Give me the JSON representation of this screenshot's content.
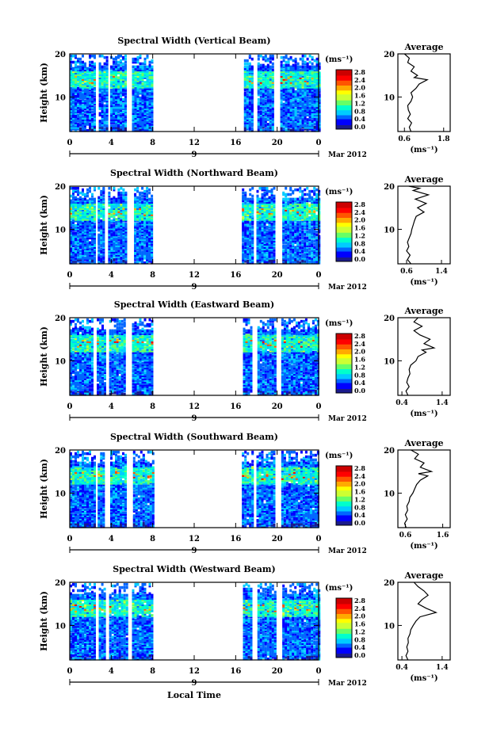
{
  "chart_data": [
    {
      "type": "heatmap",
      "title": "Spectral Width (Vertical Beam)",
      "ylabel": "Height (km)",
      "xlabel_date": "Mar 2012",
      "x_ticks": [
        "0",
        "4",
        "8",
        "12",
        "16",
        "20",
        "0"
      ],
      "day_label": "9",
      "y_ticks": [
        "20",
        "10"
      ],
      "ylim": [
        2,
        20
      ],
      "xlim": [
        0,
        24
      ],
      "data_segments_hours": [
        [
          0,
          2.4
        ],
        [
          2.8,
          3.5
        ],
        [
          3.9,
          5.4
        ],
        [
          6,
          8
        ],
        [
          16.8,
          17.7
        ],
        [
          18.1,
          19.7
        ],
        [
          20.3,
          24
        ]
      ],
      "colorbar": {
        "unit_label": "(ms⁻¹)",
        "ticks": [
          "2.8",
          "2.4",
          "2.0",
          "1.6",
          "1.2",
          "0.8",
          "0.4",
          "0.0"
        ],
        "range": [
          0,
          2.8
        ],
        "colors": [
          "#1a1a8c",
          "#0000ff",
          "#0066ff",
          "#00ccff",
          "#00ffcc",
          "#66ff66",
          "#ccff33",
          "#ffff00",
          "#ffaa00",
          "#ff5500",
          "#ff0000",
          "#cc0000"
        ]
      },
      "average": {
        "title": "Average",
        "xlabel": "(ms⁻¹)",
        "x_ticks": [
          "0.6",
          "1.8"
        ],
        "xlim": [
          0.4,
          2.0
        ],
        "y_ticks": [
          "20",
          "10"
        ],
        "profile": [
          [
            2,
            0.8
          ],
          [
            3,
            0.75
          ],
          [
            4,
            0.82
          ],
          [
            5,
            0.7
          ],
          [
            6,
            0.78
          ],
          [
            7,
            0.72
          ],
          [
            8,
            0.7
          ],
          [
            9,
            0.8
          ],
          [
            10,
            0.85
          ],
          [
            11,
            0.8
          ],
          [
            12,
            0.95
          ],
          [
            13,
            1.05
          ],
          [
            14,
            1.3
          ],
          [
            14.5,
            0.9
          ],
          [
            15,
            1.0
          ],
          [
            16,
            0.8
          ],
          [
            17,
            0.9
          ],
          [
            18,
            0.7
          ],
          [
            19,
            0.75
          ],
          [
            20,
            0.6
          ]
        ]
      }
    },
    {
      "type": "heatmap",
      "title": "Spectral Width (Northward Beam)",
      "ylabel": "Height (km)",
      "xlabel_date": "Mar 2012",
      "x_ticks": [
        "0",
        "4",
        "8",
        "12",
        "16",
        "20",
        "0"
      ],
      "day_label": "9",
      "y_ticks": [
        "20",
        "10"
      ],
      "ylim": [
        2,
        20
      ],
      "xlim": [
        0,
        24
      ],
      "data_segments_hours": [
        [
          0,
          2.3
        ],
        [
          2.7,
          3.3
        ],
        [
          3.7,
          5.5
        ],
        [
          6.2,
          8
        ],
        [
          16.6,
          17.6
        ],
        [
          18.0,
          19.8
        ],
        [
          20.5,
          24
        ]
      ],
      "colorbar": {
        "unit_label": "(ms⁻¹)",
        "ticks": [
          "2.8",
          "2.4",
          "2.0",
          "1.6",
          "1.2",
          "0.8",
          "0.4",
          "0.0"
        ],
        "range": [
          0,
          2.8
        ],
        "colors": [
          "#1a1a8c",
          "#0000ff",
          "#0066ff",
          "#00ccff",
          "#00ffcc",
          "#66ff66",
          "#ccff33",
          "#ffff00",
          "#ffaa00",
          "#ff5500",
          "#ff0000",
          "#cc0000"
        ]
      },
      "average": {
        "title": "Average",
        "xlabel": "(ms⁻¹)",
        "x_ticks": [
          "0.6",
          "1.4"
        ],
        "xlim": [
          0.4,
          1.6
        ],
        "y_ticks": [
          "20",
          "10"
        ],
        "profile": [
          [
            2,
            0.7
          ],
          [
            3,
            0.62
          ],
          [
            4,
            0.68
          ],
          [
            5,
            0.6
          ],
          [
            6,
            0.65
          ],
          [
            7,
            0.62
          ],
          [
            8,
            0.66
          ],
          [
            9,
            0.7
          ],
          [
            10,
            0.72
          ],
          [
            11,
            0.75
          ],
          [
            12,
            0.78
          ],
          [
            13,
            0.82
          ],
          [
            14,
            1.0
          ],
          [
            15,
            0.85
          ],
          [
            16,
            1.05
          ],
          [
            17,
            0.8
          ],
          [
            18,
            1.1
          ],
          [
            19,
            0.75
          ],
          [
            19.5,
            0.9
          ],
          [
            20,
            0.65
          ]
        ]
      }
    },
    {
      "type": "heatmap",
      "title": "Spectral Width (Eastward Beam)",
      "ylabel": "Height (km)",
      "xlabel_date": "Mar 2012",
      "x_ticks": [
        "0",
        "4",
        "8",
        "12",
        "16",
        "20",
        "0"
      ],
      "day_label": "9",
      "y_ticks": [
        "20",
        "10"
      ],
      "ylim": [
        2,
        20
      ],
      "xlim": [
        0,
        24
      ],
      "data_segments_hours": [
        [
          0,
          2.2
        ],
        [
          2.6,
          3.4
        ],
        [
          3.8,
          5.4
        ],
        [
          6.0,
          8
        ],
        [
          16.7,
          17.6
        ],
        [
          18.1,
          19.8
        ],
        [
          20.4,
          24
        ]
      ],
      "colorbar": {
        "unit_label": "(ms⁻¹)",
        "ticks": [
          "2.8",
          "2.4",
          "2.0",
          "1.6",
          "1.2",
          "0.8",
          "0.4",
          "0.0"
        ],
        "range": [
          0,
          2.8
        ],
        "colors": [
          "#1a1a8c",
          "#0000ff",
          "#0066ff",
          "#00ccff",
          "#00ffcc",
          "#66ff66",
          "#ccff33",
          "#ffff00",
          "#ffaa00",
          "#ff5500",
          "#ff0000",
          "#cc0000"
        ]
      },
      "average": {
        "title": "Average",
        "xlabel": "(ms⁻¹)",
        "x_ticks": [
          "0.4",
          "1.4"
        ],
        "xlim": [
          0.3,
          1.6
        ],
        "y_ticks": [
          "20",
          "10"
        ],
        "profile": [
          [
            2,
            0.55
          ],
          [
            3,
            0.5
          ],
          [
            4,
            0.58
          ],
          [
            5,
            0.52
          ],
          [
            6,
            0.55
          ],
          [
            7,
            0.6
          ],
          [
            8,
            0.58
          ],
          [
            9,
            0.62
          ],
          [
            10,
            0.75
          ],
          [
            11,
            0.8
          ],
          [
            12,
            1.0
          ],
          [
            12.5,
            0.9
          ],
          [
            13,
            1.2
          ],
          [
            14,
            0.95
          ],
          [
            15,
            1.1
          ],
          [
            16,
            0.85
          ],
          [
            17,
            0.7
          ],
          [
            18,
            0.9
          ],
          [
            19,
            0.7
          ],
          [
            20,
            0.8
          ]
        ]
      }
    },
    {
      "type": "heatmap",
      "title": "Spectral Width (Southward Beam)",
      "ylabel": "Height (km)",
      "xlabel_date": "Mar 2012",
      "x_ticks": [
        "0",
        "4",
        "8",
        "12",
        "16",
        "20",
        "0"
      ],
      "day_label": "9",
      "y_ticks": [
        "20",
        "10"
      ],
      "ylim": [
        2,
        20
      ],
      "xlim": [
        0,
        24
      ],
      "data_segments_hours": [
        [
          0,
          2.3
        ],
        [
          2.7,
          3.3
        ],
        [
          3.9,
          5.4
        ],
        [
          6.1,
          8
        ],
        [
          16.6,
          17.6
        ],
        [
          18.0,
          19.8
        ],
        [
          20.4,
          24
        ]
      ],
      "colorbar": {
        "unit_label": "(ms⁻¹)",
        "ticks": [
          "2.8",
          "2.4",
          "2.0",
          "1.6",
          "1.2",
          "0.8",
          "0.4",
          "0.0"
        ],
        "range": [
          0,
          2.8
        ],
        "colors": [
          "#1a1a8c",
          "#0000ff",
          "#0066ff",
          "#00ccff",
          "#00ffcc",
          "#66ff66",
          "#ccff33",
          "#ffff00",
          "#ffaa00",
          "#ff5500",
          "#ff0000",
          "#cc0000"
        ]
      },
      "average": {
        "title": "Average",
        "xlabel": "(ms⁻¹)",
        "x_ticks": [
          "0.6",
          "1.6"
        ],
        "xlim": [
          0.4,
          1.8
        ],
        "y_ticks": [
          "20",
          "10"
        ],
        "profile": [
          [
            2,
            0.62
          ],
          [
            3,
            0.58
          ],
          [
            4,
            0.65
          ],
          [
            5,
            0.6
          ],
          [
            6,
            0.66
          ],
          [
            7,
            0.64
          ],
          [
            8,
            0.7
          ],
          [
            9,
            0.72
          ],
          [
            10,
            0.8
          ],
          [
            11,
            0.85
          ],
          [
            12,
            0.9
          ],
          [
            13,
            1.0
          ],
          [
            14,
            1.2
          ],
          [
            14.5,
            0.95
          ],
          [
            15,
            1.3
          ],
          [
            16,
            1.0
          ],
          [
            17,
            1.1
          ],
          [
            18,
            0.85
          ],
          [
            19,
            0.95
          ],
          [
            20,
            0.75
          ]
        ]
      }
    },
    {
      "type": "heatmap",
      "title": "Spectral Width (Westward Beam)",
      "ylabel": "Height (km)",
      "xlabel": "Local Time",
      "xlabel_date": "Mar 2012",
      "x_ticks": [
        "0",
        "4",
        "8",
        "12",
        "16",
        "20",
        "0"
      ],
      "day_label": "9",
      "y_ticks": [
        "20",
        "10"
      ],
      "ylim": [
        2,
        20
      ],
      "xlim": [
        0,
        24
      ],
      "data_segments_hours": [
        [
          0,
          2.3
        ],
        [
          2.8,
          3.3
        ],
        [
          3.8,
          5.5
        ],
        [
          6.0,
          8
        ],
        [
          16.7,
          17.6
        ],
        [
          18.1,
          19.8
        ],
        [
          20.5,
          24
        ]
      ],
      "colorbar": {
        "unit_label": "(ms⁻¹)",
        "ticks": [
          "2.8",
          "2.4",
          "2.0",
          "1.6",
          "1.2",
          "0.8",
          "0.4",
          "0.0"
        ],
        "range": [
          0,
          2.8
        ],
        "colors": [
          "#1a1a8c",
          "#0000ff",
          "#0066ff",
          "#00ccff",
          "#00ffcc",
          "#66ff66",
          "#ccff33",
          "#ffff00",
          "#ffaa00",
          "#ff5500",
          "#ff0000",
          "#cc0000"
        ]
      },
      "average": {
        "title": "Average",
        "xlabel": "(ms⁻¹)",
        "x_ticks": [
          "0.4",
          "1.4"
        ],
        "xlim": [
          0.3,
          1.6
        ],
        "y_ticks": [
          "20",
          "10"
        ],
        "profile": [
          [
            2,
            0.55
          ],
          [
            3,
            0.5
          ],
          [
            4,
            0.55
          ],
          [
            5,
            0.52
          ],
          [
            6,
            0.56
          ],
          [
            7,
            0.55
          ],
          [
            8,
            0.6
          ],
          [
            9,
            0.62
          ],
          [
            10,
            0.68
          ],
          [
            11,
            0.75
          ],
          [
            12,
            0.85
          ],
          [
            13,
            1.25
          ],
          [
            14,
            1.0
          ],
          [
            15,
            0.8
          ],
          [
            16,
            0.9
          ],
          [
            17,
            1.05
          ],
          [
            18,
            0.95
          ],
          [
            19,
            0.8
          ],
          [
            20,
            0.7
          ]
        ]
      }
    }
  ]
}
